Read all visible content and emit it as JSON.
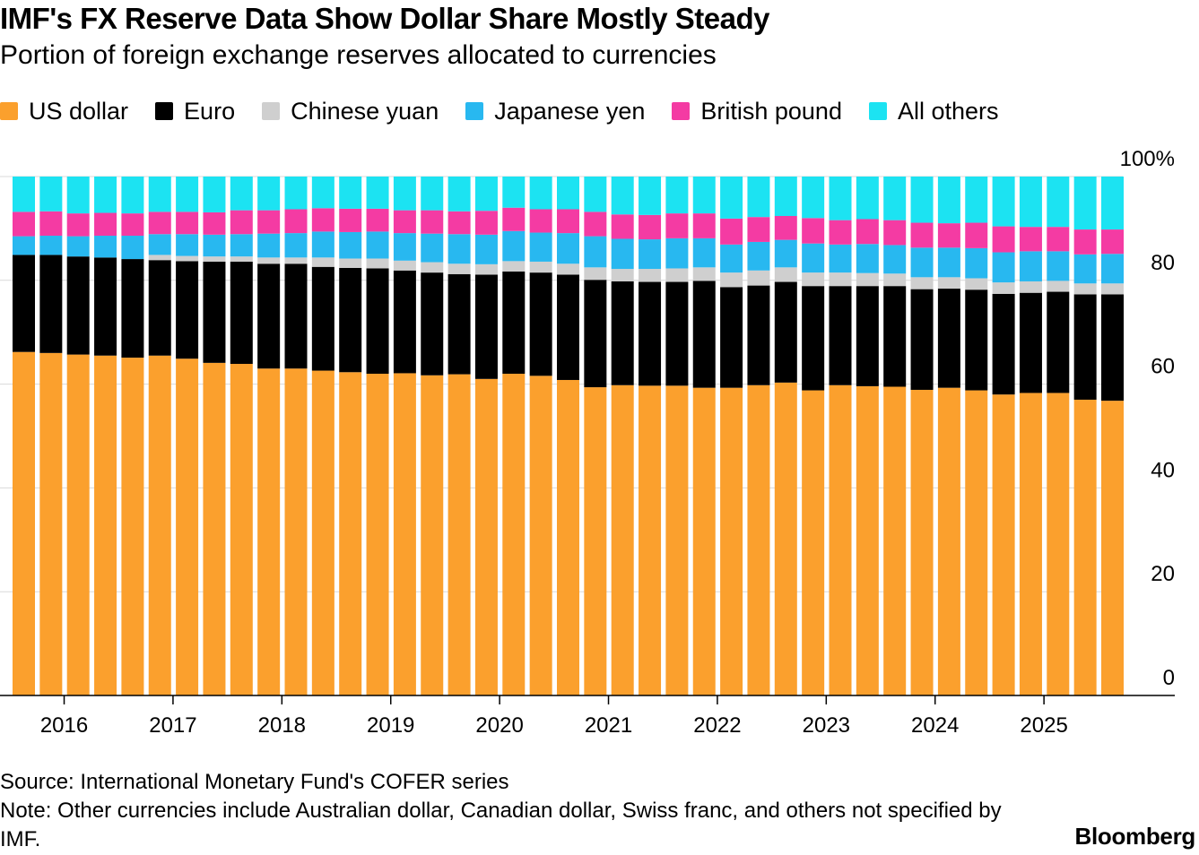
{
  "header": {
    "title": "IMF's FX Reserve Data Show Dollar Share Mostly Steady",
    "subtitle": "Portion of foreign exchange reserves allocated to currencies"
  },
  "legend": [
    {
      "label": "US dollar",
      "color": "#FBA02D"
    },
    {
      "label": "Euro",
      "color": "#000000"
    },
    {
      "label": "Chinese yuan",
      "color": "#CFCFCF"
    },
    {
      "label": "Japanese yen",
      "color": "#28B8F0"
    },
    {
      "label": "British pound",
      "color": "#F43BA3"
    },
    {
      "label": "All others",
      "color": "#1CE3F2"
    }
  ],
  "footer": {
    "source": "Source: International Monetary Fund's COFER series",
    "note": "Note: Other currencies include Australian dollar, Canadian dollar, Swiss franc, and others not specified by IMF.",
    "brand": "Bloomberg"
  },
  "chart_data": {
    "type": "bar",
    "stacked": true,
    "title": "IMF's FX Reserve Data Show Dollar Share Mostly Steady",
    "subtitle": "Portion of foreign exchange reserves allocated to currencies",
    "xlabel": "",
    "ylabel": "",
    "ylim": [
      0,
      100
    ],
    "y_ticks": [
      0,
      20,
      40,
      60,
      80,
      100
    ],
    "y_tick_labels": [
      "0",
      "20",
      "40",
      "60",
      "80",
      "100%"
    ],
    "y_axis_position": "right",
    "grid": true,
    "legend_position": "top-left",
    "x_tick_labels": [
      "2016",
      "2017",
      "2018",
      "2019",
      "2020",
      "2021",
      "2022",
      "2023",
      "2024",
      "2025"
    ],
    "categories": [
      "2015Q3",
      "2015Q4",
      "2016Q1",
      "2016Q2",
      "2016Q3",
      "2016Q4",
      "2017Q1",
      "2017Q2",
      "2017Q3",
      "2017Q4",
      "2018Q1",
      "2018Q2",
      "2018Q3",
      "2018Q4",
      "2019Q1",
      "2019Q2",
      "2019Q3",
      "2019Q4",
      "2020Q1",
      "2020Q2",
      "2020Q3",
      "2020Q4",
      "2021Q1",
      "2021Q2",
      "2021Q3",
      "2021Q4",
      "2022Q1",
      "2022Q2",
      "2022Q3",
      "2022Q4",
      "2023Q1",
      "2023Q2",
      "2023Q3",
      "2023Q4",
      "2024Q1",
      "2024Q2",
      "2024Q3",
      "2024Q4",
      "2025Q1",
      "2025Q2",
      "2025Q3"
    ],
    "series": [
      {
        "name": "US dollar",
        "color": "#FBA02D",
        "values": [
          66.2,
          66.0,
          65.7,
          65.5,
          65.1,
          65.5,
          64.9,
          64.1,
          63.9,
          63.0,
          63.0,
          62.6,
          62.3,
          62.0,
          62.1,
          61.7,
          61.9,
          61.0,
          62.0,
          61.6,
          60.8,
          59.4,
          59.8,
          59.7,
          59.7,
          59.3,
          59.3,
          59.8,
          60.3,
          58.8,
          59.8,
          59.6,
          59.5,
          58.9,
          59.3,
          58.8,
          58.0,
          58.3,
          58.3,
          57.0,
          56.8
        ]
      },
      {
        "name": "Euro",
        "color": "#000000",
        "values": [
          18.7,
          18.9,
          18.9,
          18.9,
          19.0,
          18.4,
          18.8,
          19.5,
          19.7,
          20.2,
          20.2,
          20.0,
          20.1,
          20.3,
          19.8,
          19.8,
          19.3,
          20.1,
          19.7,
          19.9,
          20.3,
          20.7,
          20.0,
          20.0,
          20.0,
          20.6,
          19.4,
          19.2,
          19.4,
          20.1,
          19.1,
          19.3,
          19.4,
          19.4,
          19.1,
          19.4,
          19.4,
          19.3,
          19.5,
          20.3,
          20.5
        ]
      },
      {
        "name": "Chinese yuan",
        "color": "#CFCFCF",
        "values": [
          0.0,
          0.0,
          0.0,
          0.0,
          0.0,
          1.0,
          1.0,
          1.0,
          1.0,
          1.2,
          1.2,
          1.8,
          1.8,
          1.9,
          1.9,
          2.0,
          2.0,
          2.0,
          2.0,
          2.1,
          2.1,
          2.4,
          2.4,
          2.5,
          2.6,
          2.6,
          2.8,
          2.9,
          2.8,
          2.6,
          2.6,
          2.5,
          2.4,
          2.3,
          2.2,
          2.2,
          2.2,
          2.2,
          2.1,
          2.1,
          2.1
        ]
      },
      {
        "name": "Japanese yen",
        "color": "#28B8F0",
        "values": [
          3.6,
          3.7,
          3.9,
          4.2,
          4.5,
          4.0,
          4.2,
          4.2,
          4.3,
          4.6,
          4.7,
          5.0,
          5.1,
          5.2,
          5.3,
          5.5,
          5.7,
          5.7,
          5.8,
          5.6,
          5.9,
          6.0,
          5.8,
          5.7,
          5.8,
          5.6,
          5.4,
          5.5,
          5.3,
          5.6,
          5.4,
          5.6,
          5.5,
          5.7,
          5.7,
          5.8,
          5.8,
          5.8,
          5.7,
          5.6,
          5.7
        ]
      },
      {
        "name": "British pound",
        "color": "#F43BA3",
        "values": [
          4.7,
          4.7,
          4.4,
          4.4,
          4.3,
          4.3,
          4.3,
          4.3,
          4.6,
          4.5,
          4.6,
          4.5,
          4.5,
          4.4,
          4.4,
          4.5,
          4.4,
          4.6,
          4.5,
          4.5,
          4.6,
          4.7,
          4.7,
          4.7,
          4.8,
          4.8,
          5.0,
          4.8,
          4.6,
          4.9,
          4.7,
          4.8,
          4.8,
          4.8,
          4.7,
          4.9,
          5.0,
          4.7,
          4.7,
          4.8,
          4.7
        ]
      },
      {
        "name": "All others",
        "color": "#1CE3F2",
        "values": [
          6.8,
          6.7,
          7.1,
          7.0,
          7.1,
          6.8,
          6.8,
          6.9,
          6.5,
          6.5,
          6.3,
          6.1,
          6.2,
          6.2,
          6.5,
          6.5,
          6.7,
          6.6,
          6.0,
          6.3,
          6.3,
          6.8,
          7.3,
          7.4,
          7.1,
          7.1,
          8.1,
          7.8,
          7.6,
          8.0,
          8.4,
          8.2,
          8.4,
          8.9,
          9.0,
          8.9,
          9.6,
          9.7,
          9.7,
          10.2,
          10.2
        ]
      }
    ]
  }
}
